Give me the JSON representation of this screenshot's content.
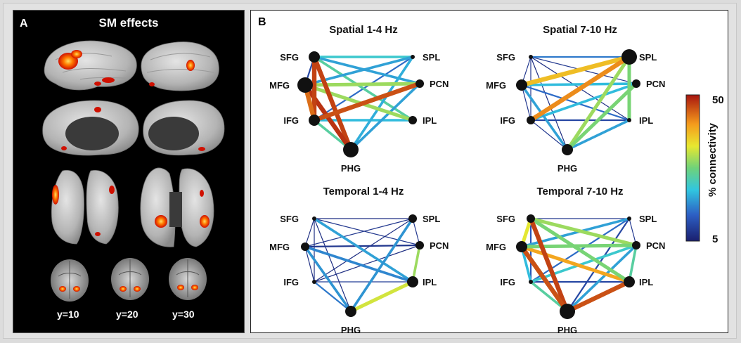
{
  "panel_a": {
    "letter": "A",
    "title": "SM effects",
    "slice_labels": [
      "y=10",
      "y=20",
      "y=30"
    ]
  },
  "panel_b": {
    "letter": "B",
    "colorbar": {
      "max_label": "50",
      "min_label": "5",
      "axis_label": "% connectivity",
      "min": 5,
      "max": 50
    },
    "networks": [
      {
        "title": "Spatial 1-4 Hz",
        "nodes": {
          "SFG": "SFG",
          "MFG": "MFG",
          "IFG": "IFG",
          "PHG": "PHG",
          "SPL": "SPL",
          "PCN": "PCN",
          "IPL": "IPL"
        },
        "node_weight": {
          "SFG": 2,
          "MFG": 3,
          "IFG": 2,
          "PHG": 3,
          "SPL": 0,
          "PCN": 1,
          "IPL": 1
        },
        "edges": [
          [
            "SFG",
            "PHG",
            47,
            5
          ],
          [
            "MFG",
            "PHG",
            48,
            5
          ],
          [
            "SFG",
            "IFG",
            47,
            5
          ],
          [
            "IFG",
            "PCN",
            46,
            5
          ],
          [
            "MFG",
            "IFG",
            44,
            5
          ],
          [
            "MFG",
            "PCN",
            30,
            4
          ],
          [
            "MFG",
            "IPL",
            30,
            4
          ],
          [
            "IFG",
            "PHG",
            25,
            3
          ],
          [
            "SFG",
            "SPL",
            22,
            3
          ],
          [
            "SFG",
            "PCN",
            18,
            3
          ],
          [
            "SFG",
            "IPL",
            25,
            3
          ],
          [
            "MFG",
            "SPL",
            18,
            3
          ],
          [
            "IFG",
            "IPL",
            20,
            3
          ],
          [
            "PHG",
            "SPL",
            19,
            3
          ],
          [
            "PHG",
            "PCN",
            18,
            3
          ],
          [
            "IFG",
            "SPL",
            14,
            2
          ],
          [
            "SFG",
            "MFG",
            10,
            2
          ]
        ]
      },
      {
        "title": "Spatial 7-10 Hz",
        "nodes": {
          "SFG": "SFG",
          "MFG": "MFG",
          "IFG": "IFG",
          "PHG": "PHG",
          "SPL": "SPL",
          "PCN": "PCN",
          "IPL": "IPL"
        },
        "node_weight": {
          "SFG": 0,
          "MFG": 2,
          "IFG": 1,
          "PHG": 2,
          "SPL": 3,
          "PCN": 1,
          "IPL": 0
        },
        "edges": [
          [
            "MFG",
            "SPL",
            38,
            5
          ],
          [
            "IFG",
            "SPL",
            42,
            5
          ],
          [
            "PHG",
            "SPL",
            30,
            4
          ],
          [
            "PHG",
            "PCN",
            28,
            4
          ],
          [
            "SPL",
            "IPL",
            28,
            4
          ],
          [
            "MFG",
            "PCN",
            20,
            3
          ],
          [
            "IFG",
            "PCN",
            20,
            3
          ],
          [
            "MFG",
            "PHG",
            18,
            3
          ],
          [
            "SFG",
            "SPL",
            15,
            2
          ],
          [
            "MFG",
            "IPL",
            14,
            2
          ],
          [
            "IFG",
            "IPL",
            10,
            2
          ],
          [
            "PHG",
            "IPL",
            18,
            3
          ],
          [
            "SFG",
            "PCN",
            8,
            1
          ],
          [
            "SFG",
            "IPL",
            7,
            1
          ],
          [
            "SFG",
            "IFG",
            8,
            1
          ],
          [
            "SFG",
            "MFG",
            8,
            1
          ],
          [
            "MFG",
            "IFG",
            8,
            1
          ],
          [
            "IFG",
            "PHG",
            8,
            1
          ],
          [
            "SFG",
            "PHG",
            7,
            1
          ]
        ]
      },
      {
        "title": "Temporal 1-4 Hz",
        "nodes": {
          "SFG": "SFG",
          "MFG": "MFG",
          "IFG": "IFG",
          "PHG": "PHG",
          "SPL": "SPL",
          "PCN": "PCN",
          "IPL": "IPL"
        },
        "node_weight": {
          "SFG": 0,
          "MFG": 1,
          "IFG": 0,
          "PHG": 2,
          "SPL": 1,
          "PCN": 1,
          "IPL": 2
        },
        "edges": [
          [
            "PHG",
            "IPL",
            33,
            4
          ],
          [
            "PCN",
            "IPL",
            30,
            3
          ],
          [
            "SFG",
            "IPL",
            18,
            3
          ],
          [
            "MFG",
            "IPL",
            16,
            3
          ],
          [
            "MFG",
            "PHG",
            17,
            3
          ],
          [
            "PHG",
            "SPL",
            17,
            3
          ],
          [
            "IFG",
            "PHG",
            15,
            2
          ],
          [
            "MFG",
            "PCN",
            8,
            2
          ],
          [
            "SFG",
            "PCN",
            8,
            1
          ],
          [
            "MFG",
            "SPL",
            8,
            1
          ],
          [
            "IFG",
            "SPL",
            7,
            1
          ],
          [
            "SFG",
            "SPL",
            7,
            1
          ],
          [
            "IFG",
            "IPL",
            9,
            1
          ],
          [
            "SFG",
            "MFG",
            7,
            1
          ],
          [
            "MFG",
            "IFG",
            7,
            1
          ],
          [
            "SFG",
            "IFG",
            7,
            1
          ],
          [
            "SFG",
            "PHG",
            7,
            1
          ],
          [
            "SPL",
            "PCN",
            8,
            1
          ],
          [
            "IFG",
            "PCN",
            7,
            1
          ]
        ]
      },
      {
        "title": "Temporal 7-10 Hz",
        "nodes": {
          "SFG": "SFG",
          "MFG": "MFG",
          "IFG": "IFG",
          "PHG": "PHG",
          "SPL": "SPL",
          "PCN": "PCN",
          "IPL": "IPL"
        },
        "node_weight": {
          "SFG": 1,
          "MFG": 2,
          "IFG": 0,
          "PHG": 3,
          "SPL": 0,
          "PCN": 1,
          "IPL": 2
        },
        "edges": [
          [
            "SFG",
            "PHG",
            47,
            5
          ],
          [
            "MFG",
            "PHG",
            46,
            5
          ],
          [
            "PHG",
            "IPL",
            46,
            5
          ],
          [
            "MFG",
            "IPL",
            40,
            4
          ],
          [
            "SFG",
            "PCN",
            30,
            4
          ],
          [
            "MFG",
            "PCN",
            28,
            4
          ],
          [
            "SFG",
            "IPL",
            28,
            4
          ],
          [
            "SFG",
            "MFG",
            34,
            4
          ],
          [
            "IFG",
            "PHG",
            25,
            3
          ],
          [
            "IFG",
            "PCN",
            22,
            3
          ],
          [
            "MFG",
            "IFG",
            20,
            3
          ],
          [
            "PCN",
            "IPL",
            25,
            3
          ],
          [
            "MFG",
            "SPL",
            18,
            3
          ],
          [
            "IFG",
            "SPL",
            14,
            2
          ],
          [
            "PHG",
            "PCN",
            18,
            3
          ],
          [
            "SFG",
            "IFG",
            12,
            2
          ],
          [
            "PHG",
            "SPL",
            10,
            2
          ],
          [
            "IFG",
            "IPL",
            10,
            2
          ],
          [
            "SFG",
            "SPL",
            8,
            1
          ],
          [
            "SPL",
            "PCN",
            8,
            1
          ]
        ]
      }
    ]
  }
}
